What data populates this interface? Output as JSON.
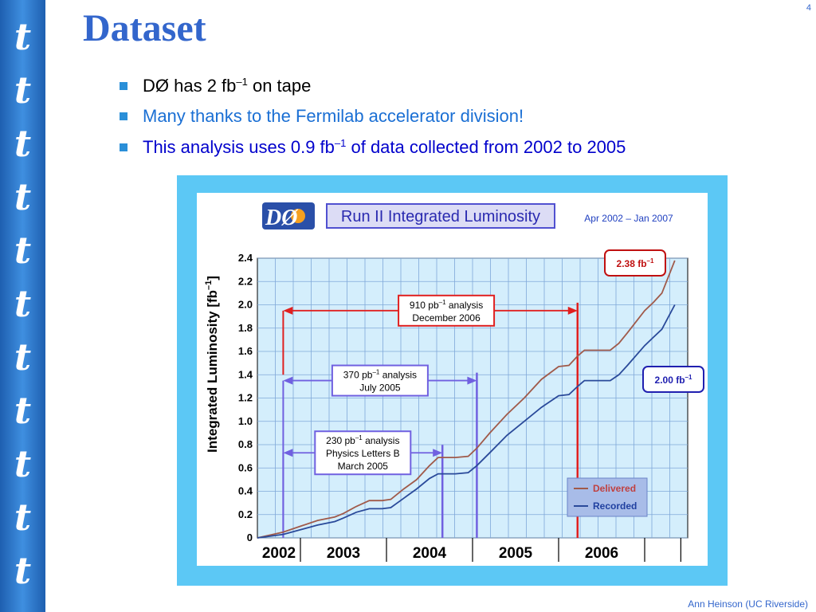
{
  "slide": {
    "title": "Dataset",
    "page_number": "4",
    "footer": "Ann Heinson   (UC Riverside)",
    "sidebar_glyph": "t",
    "colors": {
      "sidebar": "#2a70c8",
      "title": "#3366cc",
      "bullet_square": "#2a8fd8",
      "frame": "#5cc8f5"
    }
  },
  "bullets": [
    {
      "prefix": "DØ has 2 fb",
      "sup": "–1",
      "suffix": " on tape",
      "color": "#000000"
    },
    {
      "prefix": "Many thanks to the Fermilab accelerator division!",
      "sup": "",
      "suffix": "",
      "color": "#1a6fd4"
    },
    {
      "prefix": "This analysis uses 0.9 fb",
      "sup": "–1",
      "suffix": " of data collected from 2002 to 2005",
      "color": "#0000cc"
    }
  ],
  "figure": {
    "logo": {
      "letters": "DØ"
    },
    "title": "Run II Integrated Luminosity",
    "date_range": "Apr 2002 – Jan 2007",
    "ylabel": "Integrated Luminosity  [fb",
    "ylabel_sup": "–1",
    "ylabel_end": "]"
  },
  "chart_data": {
    "type": "line",
    "title": "Run II Integrated Luminosity",
    "ylabel": "Integrated Luminosity [fb–1]",
    "xlabel": "",
    "xlim": [
      2002.0,
      2007.0
    ],
    "ylim": [
      0,
      2.4
    ],
    "yticks": [
      0,
      0.2,
      0.4,
      0.6,
      0.8,
      1.0,
      1.2,
      1.4,
      1.6,
      1.8,
      2.0,
      2.2,
      2.4
    ],
    "ytick_labels": [
      "0",
      "0.2",
      "0.4",
      "0.6",
      "0.8",
      "1.0",
      "1.2",
      "1.4",
      "1.6",
      "1.8",
      "2.0",
      "2.2",
      "2.4"
    ],
    "year_labels": [
      {
        "label": "2002",
        "x": 2002.25
      },
      {
        "label": "2003",
        "x": 2003.0
      },
      {
        "label": "2004",
        "x": 2004.0
      },
      {
        "label": "2005",
        "x": 2005.0
      },
      {
        "label": "2006",
        "x": 2006.0
      }
    ],
    "grid": true,
    "legend_position": "bottom-right",
    "series": [
      {
        "name": "Delivered",
        "color": "#a05a4a",
        "x": [
          2002.0,
          2002.3,
          2002.5,
          2002.7,
          2002.9,
          2003.0,
          2003.15,
          2003.3,
          2003.45,
          2003.55,
          2003.7,
          2003.85,
          2004.0,
          2004.1,
          2004.3,
          2004.45,
          2004.55,
          2004.7,
          2004.9,
          2005.1,
          2005.3,
          2005.5,
          2005.62,
          2005.72,
          2005.8,
          2006.1,
          2006.2,
          2006.3,
          2006.5,
          2006.6,
          2006.7,
          2006.85
        ],
        "y": [
          0.0,
          0.05,
          0.1,
          0.15,
          0.18,
          0.21,
          0.27,
          0.32,
          0.32,
          0.33,
          0.42,
          0.5,
          0.62,
          0.69,
          0.69,
          0.7,
          0.77,
          0.9,
          1.06,
          1.2,
          1.36,
          1.47,
          1.48,
          1.56,
          1.61,
          1.61,
          1.67,
          1.76,
          1.95,
          2.02,
          2.1,
          2.38
        ]
      },
      {
        "name": "Recorded",
        "color": "#2a4a9a",
        "x": [
          2002.0,
          2002.3,
          2002.5,
          2002.7,
          2002.9,
          2003.0,
          2003.15,
          2003.3,
          2003.45,
          2003.55,
          2003.7,
          2003.85,
          2004.0,
          2004.1,
          2004.3,
          2004.45,
          2004.55,
          2004.7,
          2004.9,
          2005.1,
          2005.3,
          2005.5,
          2005.62,
          2005.72,
          2005.8,
          2006.1,
          2006.2,
          2006.3,
          2006.5,
          2006.6,
          2006.7,
          2006.85
        ],
        "y": [
          0.0,
          0.03,
          0.07,
          0.11,
          0.14,
          0.17,
          0.22,
          0.25,
          0.25,
          0.26,
          0.34,
          0.42,
          0.51,
          0.55,
          0.55,
          0.56,
          0.62,
          0.73,
          0.88,
          1.0,
          1.12,
          1.22,
          1.23,
          1.3,
          1.35,
          1.35,
          1.4,
          1.48,
          1.65,
          1.72,
          1.79,
          2.0
        ]
      }
    ],
    "year_dividers": [
      2002.5,
      2003.5,
      2004.5,
      2005.5,
      2006.5,
      2006.92
    ],
    "analysis_markers": [
      {
        "label_lines": [
          "910 pb",
          "analysis",
          "December 2006"
        ],
        "sup": "–1",
        "start": 2002.3,
        "end": 2005.72,
        "y_arrow": 1.95,
        "y_line_bottom": 0.0,
        "left_line_bottom": 1.4,
        "box_color": "#e02020",
        "line_color": "#e02020"
      },
      {
        "label_lines": [
          "370 pb",
          "analysis",
          "July 2005"
        ],
        "sup": "–1",
        "start": 2002.3,
        "end": 2004.55,
        "y_arrow": 1.35,
        "y_line_bottom": 0.0,
        "left_line_bottom": 0.0,
        "box_color": "#7060e0",
        "line_color": "#7060e0"
      },
      {
        "label_lines": [
          "230 pb",
          "analysis",
          "Physics Letters B",
          "March 2005"
        ],
        "sup": "–1",
        "start": 2002.3,
        "end": 2004.15,
        "y_arrow": 0.73,
        "y_line_bottom": 0.0,
        "left_line_bottom": 0.0,
        "box_color": "#7060e0",
        "line_color": "#7060e0"
      }
    ],
    "end_labels": [
      {
        "text": "2.38  fb",
        "sup": "–1",
        "color": "#c01010",
        "value": 2.38
      },
      {
        "text": "2.00  fb",
        "sup": "–1",
        "color": "#2020b0",
        "value": 2.0
      }
    ]
  }
}
